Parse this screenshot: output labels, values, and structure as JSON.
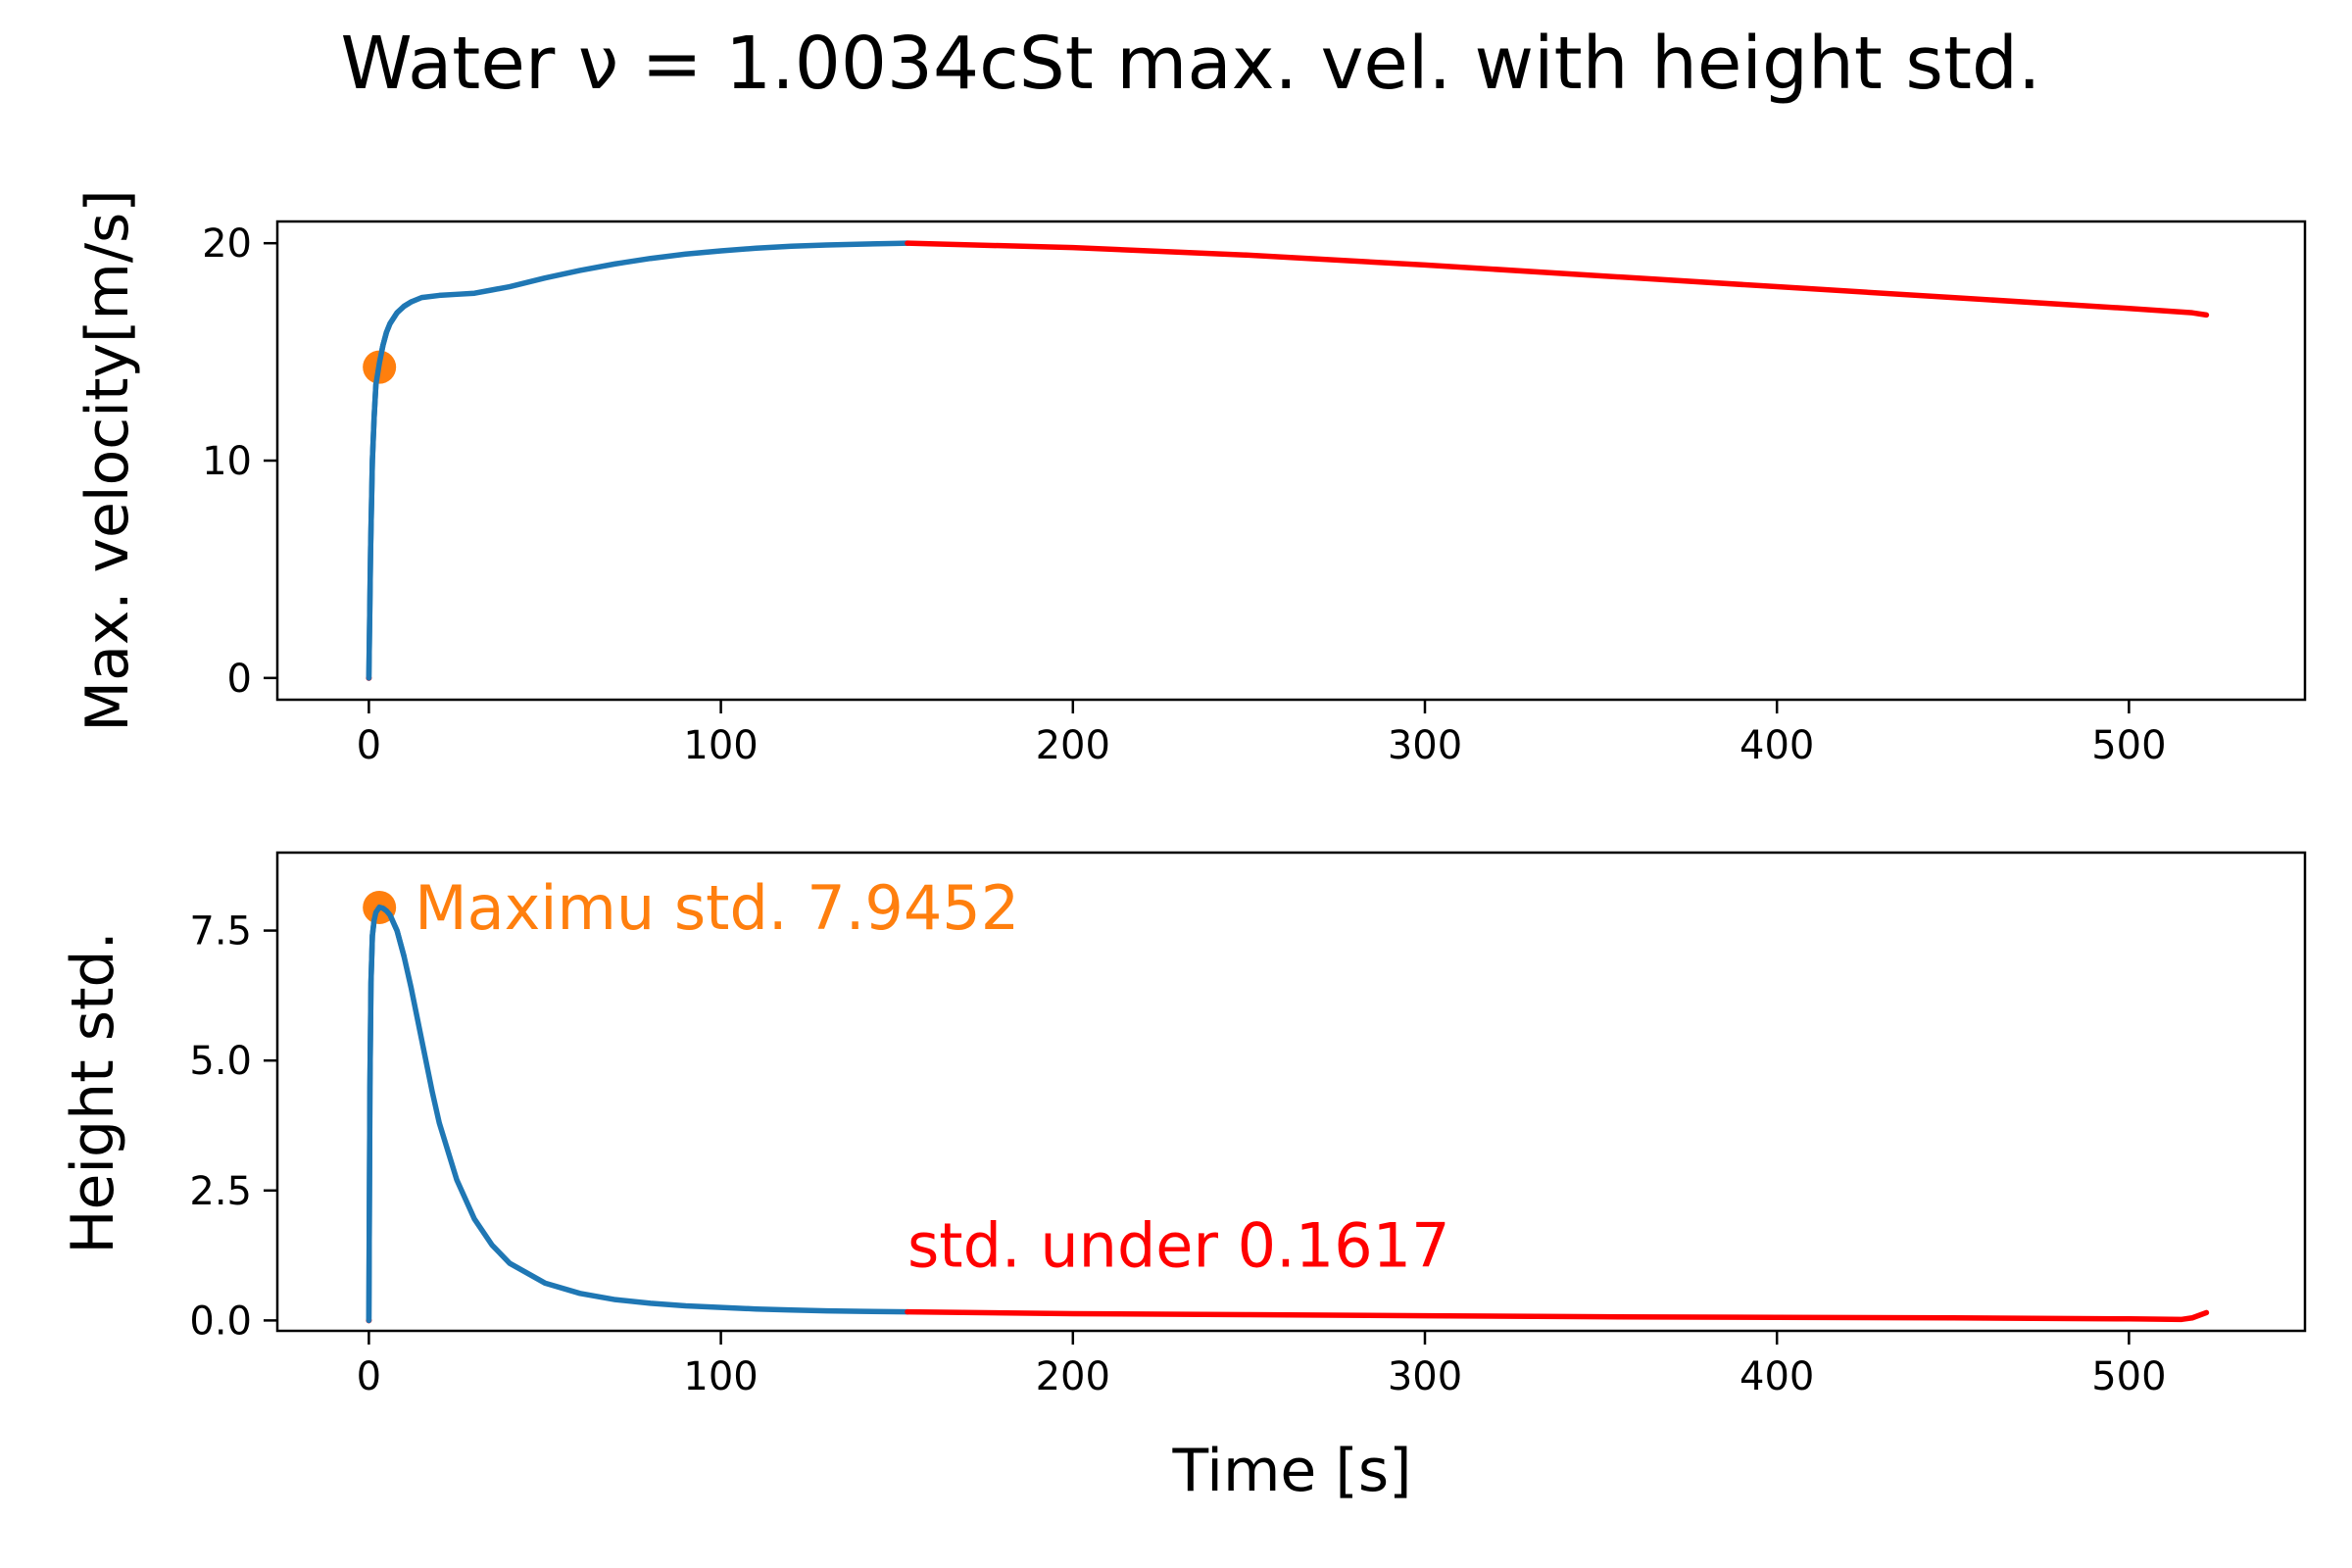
{
  "title": "Water ν = 1.0034cSt  max. vel. with height std.",
  "colors": {
    "early": "#1f77b4",
    "late": "#ff0000",
    "marker": "#ff7f0e",
    "axis": "#000000"
  },
  "chart_data": [
    {
      "type": "line",
      "ylabel": "Max. velocity[m/s]",
      "xlabel": "",
      "xlim": [
        -26,
        550
      ],
      "ylim": [
        -1,
        21
      ],
      "xticks": [
        0,
        100,
        200,
        300,
        400,
        500
      ],
      "yticks": [
        0,
        10,
        20
      ],
      "ytick_labels": [
        "0",
        "10",
        "20"
      ],
      "xtick_labels": [
        "0",
        "100",
        "200",
        "300",
        "400",
        "500"
      ],
      "series": [
        {
          "color_key": "early",
          "x": [
            0,
            0.5,
            1,
            1.5,
            2,
            3,
            4,
            5,
            6,
            8,
            10,
            12,
            15,
            20,
            25,
            30,
            35,
            40,
            50,
            60,
            70,
            80,
            90,
            100,
            110,
            120,
            130,
            140,
            150,
            153
          ],
          "y": [
            0,
            6,
            10,
            12,
            13.5,
            14.5,
            15.3,
            15.9,
            16.3,
            16.8,
            17.1,
            17.3,
            17.5,
            17.6,
            17.65,
            17.7,
            17.85,
            18.0,
            18.4,
            18.75,
            19.05,
            19.3,
            19.5,
            19.65,
            19.77,
            19.86,
            19.92,
            19.96,
            19.99,
            20.0
          ]
        },
        {
          "color_key": "late",
          "x": [
            153,
            200,
            250,
            300,
            350,
            400,
            450,
            500,
            518,
            522
          ],
          "y": [
            20.0,
            19.8,
            19.45,
            19.0,
            18.5,
            18.0,
            17.5,
            17.0,
            16.8,
            16.7
          ]
        }
      ],
      "markers": [
        {
          "x": 3,
          "y": 14.3,
          "color_key": "marker"
        }
      ],
      "annotations": []
    },
    {
      "type": "line",
      "ylabel": "Height std.",
      "xlabel": "Time [s]",
      "xlim": [
        -26,
        550
      ],
      "ylim": [
        -0.2,
        9.0
      ],
      "xticks": [
        0,
        100,
        200,
        300,
        400,
        500
      ],
      "yticks": [
        0,
        2.5,
        5.0,
        7.5
      ],
      "ytick_labels": [
        "0.0",
        "2.5",
        "5.0",
        "7.5"
      ],
      "xtick_labels": [
        "0",
        "100",
        "200",
        "300",
        "400",
        "500"
      ],
      "series": [
        {
          "color_key": "early",
          "x": [
            0,
            0.3,
            0.6,
            1,
            1.5,
            2,
            3,
            4,
            5,
            6,
            8,
            10,
            12,
            15,
            18,
            20,
            25,
            30,
            35,
            40,
            50,
            60,
            70,
            80,
            90,
            100,
            110,
            120,
            130,
            140,
            153
          ],
          "y": [
            0,
            4.5,
            6.5,
            7.4,
            7.7,
            7.85,
            7.95,
            7.93,
            7.88,
            7.8,
            7.5,
            7.0,
            6.4,
            5.4,
            4.4,
            3.8,
            2.7,
            1.95,
            1.45,
            1.1,
            0.72,
            0.52,
            0.4,
            0.33,
            0.28,
            0.25,
            0.22,
            0.2,
            0.185,
            0.175,
            0.165
          ]
        },
        {
          "color_key": "late",
          "x": [
            153,
            200,
            250,
            300,
            350,
            400,
            450,
            500,
            515,
            518,
            522
          ],
          "y": [
            0.165,
            0.13,
            0.11,
            0.09,
            0.07,
            0.06,
            0.05,
            0.03,
            0.02,
            0.05,
            0.15
          ]
        }
      ],
      "markers": [
        {
          "x": 3,
          "y": 7.9452,
          "color_key": "marker"
        }
      ],
      "annotations": [
        {
          "text": "Maximu std. 7.9452",
          "x": 13,
          "y": 7.9452,
          "color_key": "marker"
        },
        {
          "text": "std. under 0.1617",
          "x": 153,
          "y": 1.45,
          "color_key": "late"
        }
      ]
    }
  ]
}
